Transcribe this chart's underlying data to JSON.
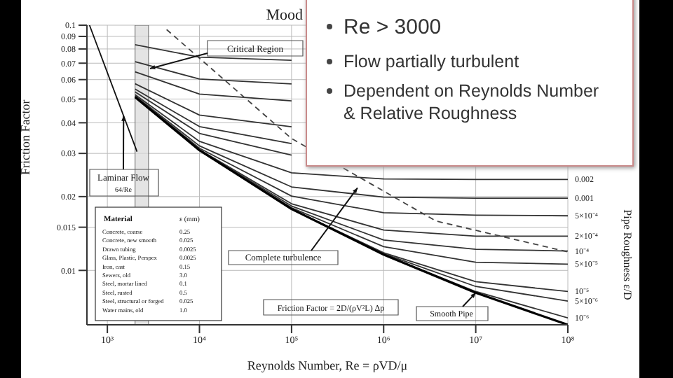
{
  "chart_data": {
    "type": "line",
    "title": "Mood",
    "xlabel": "Reynolds Number, Re = ρVD/μ",
    "ylabel": "Friction Factor",
    "y2label": "Pipe Roughness ε/D",
    "log": "xy",
    "grid": true,
    "legend": false,
    "xlim": [
      600,
      100000000
    ],
    "xticks": [
      {
        "value": 1000,
        "label": "10³"
      },
      {
        "value": 10000,
        "label": "10⁴"
      },
      {
        "value": 100000,
        "label": "10⁵"
      },
      {
        "value": 1000000,
        "label": "10⁶"
      },
      {
        "value": 10000000,
        "label": "10⁷"
      },
      {
        "value": 100000000,
        "label": "10⁸"
      }
    ],
    "ylim": [
      0.006,
      0.1
    ],
    "yticks": [
      0.01,
      0.015,
      0.02,
      0.03,
      0.04,
      0.05,
      0.06,
      0.07,
      0.08,
      0.09,
      0.1
    ],
    "bands": [
      {
        "axis": "x",
        "from": 2000,
        "to": 2800,
        "color": "#d8d8d8"
      }
    ],
    "series": [
      {
        "color": "#111111",
        "x": [
          640,
          2100
        ],
        "values": [
          0.1,
          0.0305
        ]
      },
      {
        "color": "#333333",
        "x": [
          2000,
          10000,
          100000
        ],
        "values": [
          0.0832,
          0.0741,
          0.0719
        ]
      },
      {
        "color": "#333333",
        "x": [
          2000,
          10000,
          100000
        ],
        "values": [
          0.071,
          0.0603,
          0.0576
        ]
      },
      {
        "color": "#333333",
        "x": [
          2000,
          10000,
          100000
        ],
        "values": [
          0.0645,
          0.0524,
          0.0491
        ]
      },
      {
        "color": "#333333",
        "x": [
          2000,
          10000,
          100000
        ],
        "values": [
          0.0577,
          0.043,
          0.0385
        ]
      },
      {
        "color": "#333333",
        "x": [
          2000,
          10000,
          100000
        ],
        "values": [
          0.0549,
          0.0386,
          0.0329
        ]
      },
      {
        "color": "#333333",
        "x": [
          2000,
          10000,
          100000
        ],
        "values": [
          0.0535,
          0.0362,
          0.0295
        ]
      },
      {
        "name": "0.002",
        "color": "#333333",
        "x": [
          2000,
          10000,
          100000,
          1000000,
          10000000,
          100000000
        ],
        "values": [
          0.0521,
          0.0336,
          0.025,
          0.0236,
          0.0235,
          0.0235
        ]
      },
      {
        "name": "0.001",
        "color": "#333333",
        "x": [
          2000,
          10000,
          100000,
          1000000,
          10000000,
          100000000
        ],
        "values": [
          0.0515,
          0.0322,
          0.0219,
          0.0199,
          0.0197,
          0.0197
        ]
      },
      {
        "name": "5×10⁻⁴",
        "color": "#333333",
        "x": [
          2000,
          10000,
          100000,
          1000000,
          10000000,
          100000000
        ],
        "values": [
          0.0513,
          0.0315,
          0.0201,
          0.0172,
          0.0168,
          0.0167
        ]
      },
      {
        "name": "2×10⁻⁴",
        "color": "#333333",
        "x": [
          2000,
          10000,
          100000,
          1000000,
          10000000,
          100000000
        ],
        "values": [
          0.0511,
          0.0311,
          0.0187,
          0.0146,
          0.0138,
          0.0138
        ]
      },
      {
        "name": "10⁻⁴",
        "color": "#333333",
        "x": [
          2000,
          10000,
          100000,
          1000000,
          10000000,
          100000000
        ],
        "values": [
          0.051,
          0.031,
          0.0183,
          0.0133,
          0.0122,
          0.012
        ]
      },
      {
        "name": "5×10⁻⁵",
        "color": "#333333",
        "x": [
          2000,
          10000,
          100000,
          1000000,
          10000000,
          100000000
        ],
        "values": [
          0.0509,
          0.0309,
          0.018,
          0.0125,
          0.0108,
          0.0106
        ]
      },
      {
        "name": "10⁻⁵",
        "color": "#333333",
        "x": [
          2000,
          10000,
          100000,
          1000000,
          10000000,
          100000000
        ],
        "values": [
          0.0509,
          0.0309,
          0.0178,
          0.0118,
          0.009,
          0.0082
        ]
      },
      {
        "name": "5×10⁻⁶",
        "color": "#333333",
        "x": [
          2000,
          10000,
          100000,
          1000000,
          10000000,
          100000000
        ],
        "values": [
          0.0509,
          0.0309,
          0.0178,
          0.0117,
          0.0086,
          0.0075
        ]
      },
      {
        "name": "10⁻⁶",
        "color": "#333333",
        "x": [
          2000,
          10000,
          100000,
          1000000,
          10000000,
          100000000
        ],
        "values": [
          0.0509,
          0.0309,
          0.0178,
          0.0116,
          0.0082,
          0.0064
        ]
      },
      {
        "color": "#000000",
        "x": [
          2000,
          10000,
          100000,
          1000000,
          10000000,
          100000000
        ],
        "values": [
          0.0509,
          0.0309,
          0.0178,
          0.0116,
          0.0081,
          0.006
        ]
      },
      {
        "color": "#444444",
        "line_style": "dashed",
        "x": [
          4400,
          100000,
          3700000,
          100000000
        ],
        "values": [
          0.096,
          0.0345,
          0.0159,
          0.0119
        ]
      }
    ],
    "annotations": [
      {
        "text": "Laminar Flow",
        "x": 1500,
        "y": 0.0427
      },
      "64/Re",
      {
        "text": "Complete turbulence",
        "x": 520000,
        "y": 0.0217
      },
      "Friction Factor = 2D/(ρV²L) Δp",
      {
        "text": "Smooth Pipe",
        "x": 10000000,
        "y": 0.0081
      },
      "Critical Region",
      "Re > 3000",
      "Flow partially turbulent",
      "Dependent on Reynolds Number & Relative Roughness",
      "Material",
      "ε (mm)",
      "Concrete, coarse",
      "0.25",
      "Concrete, new smooth",
      "0.025",
      "Drawn tubing",
      "0.0025",
      "Glass, Plastic, Perspex",
      "0.0025",
      "Iron, cast",
      "0.15",
      "Sewers, old",
      "3.0",
      "Steel, mortar lined",
      "0.1",
      "Steel, rusted",
      "0.5",
      "Steel, structural or forged",
      "0.025",
      "Water mains, old",
      "1.0"
    ]
  }
}
